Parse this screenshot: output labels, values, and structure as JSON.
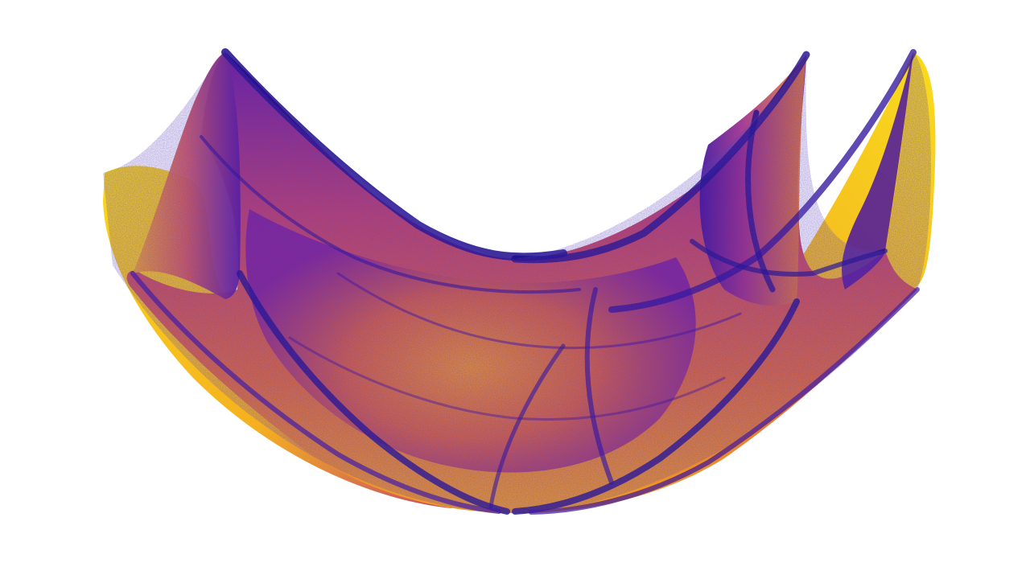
{
  "image": {
    "subject": "strange-attractor-density-render",
    "background_color": "#ffffff",
    "palette": {
      "deep_blue": "#1c0c8c",
      "indigo": "#3d0a9e",
      "purple": "#7b1fa2",
      "magenta": "#b5367a",
      "orange": "#e8702a",
      "amber": "#f5a51c",
      "yellow": "#f9d71c"
    }
  }
}
